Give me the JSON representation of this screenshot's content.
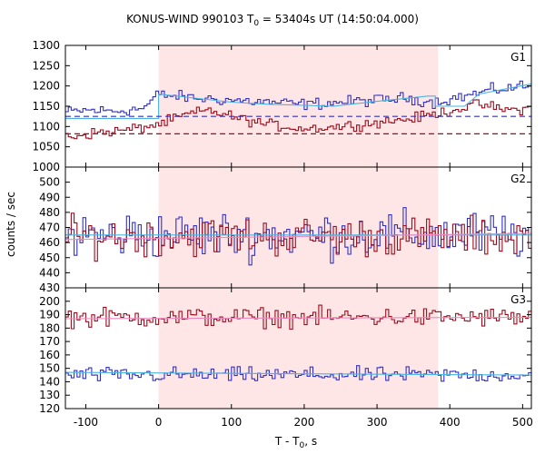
{
  "title": {
    "pre": "KONUS-WIND 990103 T",
    "sub": "0",
    "post": " = 53404s UT (14:50:04.000)"
  },
  "axes": {
    "ylabel": "counts / sec",
    "xlabel_pre": "T - T",
    "xlabel_sub": "0",
    "xlabel_post": ", s"
  },
  "colors": {
    "highlight": "#ffe6e6",
    "red": "#9b0d1e",
    "blue": "#3131c4",
    "cyan": "#49b4e0",
    "pink": "#ee88bb",
    "grid": "#000000"
  },
  "chart_data": {
    "type": "line",
    "x_range": [
      -128,
      512
    ],
    "xticks": [
      -100,
      0,
      100,
      200,
      300,
      400,
      500
    ],
    "bin_width_s": 4,
    "highlight_interval": [
      0,
      384
    ],
    "panels": [
      {
        "name": "G1",
        "ylim": [
          1000,
          1300
        ],
        "yticks": [
          1000,
          1050,
          1100,
          1150,
          1200,
          1250,
          1300
        ],
        "series": [
          {
            "color": "blue",
            "style": "step",
            "segments": [
              [
                -128,
                1135
              ],
              [
                -100,
                1140
              ],
              [
                -60,
                1138
              ],
              [
                -20,
                1145
              ],
              [
                0,
                1180
              ],
              [
                20,
                1175
              ],
              [
                50,
                1170
              ],
              [
                100,
                1165
              ],
              [
                150,
                1160
              ],
              [
                200,
                1155
              ],
              [
                250,
                1160
              ],
              [
                300,
                1165
              ],
              [
                340,
                1170
              ],
              [
                380,
                1160
              ],
              [
                420,
                1175
              ],
              [
                460,
                1190
              ],
              [
                500,
                1200
              ]
            ],
            "noise": 10
          },
          {
            "color": "red",
            "style": "step",
            "segments": [
              [
                -128,
                1075
              ],
              [
                -80,
                1085
              ],
              [
                -40,
                1092
              ],
              [
                0,
                1105
              ],
              [
                40,
                1130
              ],
              [
                70,
                1140
              ],
              [
                110,
                1120
              ],
              [
                150,
                1105
              ],
              [
                200,
                1095
              ],
              [
                250,
                1100
              ],
              [
                300,
                1110
              ],
              [
                350,
                1120
              ],
              [
                390,
                1135
              ],
              [
                440,
                1155
              ],
              [
                480,
                1140
              ],
              [
                512,
                1145
              ]
            ],
            "noise": 9
          },
          {
            "color": "cyan",
            "style": "fit",
            "points": [
              [
                -128,
                1120
              ],
              [
                0,
                1120
              ],
              [
                0,
                1180
              ],
              [
                100,
                1160
              ],
              [
                150,
                1155
              ],
              [
                240,
                1150
              ],
              [
                300,
                1162
              ],
              [
                370,
                1175
              ],
              [
                380,
                1175
              ],
              [
                380,
                1150
              ],
              [
                420,
                1150
              ],
              [
                440,
                1180
              ],
              [
                512,
                1205
              ]
            ]
          },
          {
            "color": "blue",
            "style": "dashed",
            "level": 1125
          },
          {
            "color": "red",
            "style": "dashed",
            "level": 1082
          }
        ]
      },
      {
        "name": "G2",
        "ylim": [
          430,
          510
        ],
        "yticks": [
          430,
          440,
          450,
          460,
          470,
          480,
          490,
          500
        ],
        "series": [
          {
            "color": "blue",
            "style": "step",
            "mean": 465,
            "noise": 11
          },
          {
            "color": "red",
            "style": "step",
            "mean": 464,
            "noise": 9
          },
          {
            "color": "cyan",
            "style": "fit",
            "points": [
              [
                -128,
                465
              ],
              [
                512,
                465
              ]
            ]
          },
          {
            "color": "pink",
            "style": "fit",
            "points": [
              [
                -128,
                462
              ],
              [
                512,
                466
              ]
            ]
          }
        ]
      },
      {
        "name": "G3",
        "ylim": [
          120,
          210
        ],
        "yticks": [
          120,
          130,
          140,
          150,
          160,
          170,
          180,
          190,
          200
        ],
        "series": [
          {
            "color": "red",
            "style": "step",
            "mean": 188,
            "noise": 5
          },
          {
            "color": "blue",
            "style": "step",
            "mean": 145,
            "noise": 4
          },
          {
            "color": "pink",
            "style": "fit",
            "points": [
              [
                -128,
                187
              ],
              [
                512,
                188
              ]
            ]
          },
          {
            "color": "cyan",
            "style": "fit",
            "points": [
              [
                -128,
                147
              ],
              [
                512,
                145
              ]
            ]
          }
        ]
      }
    ]
  }
}
